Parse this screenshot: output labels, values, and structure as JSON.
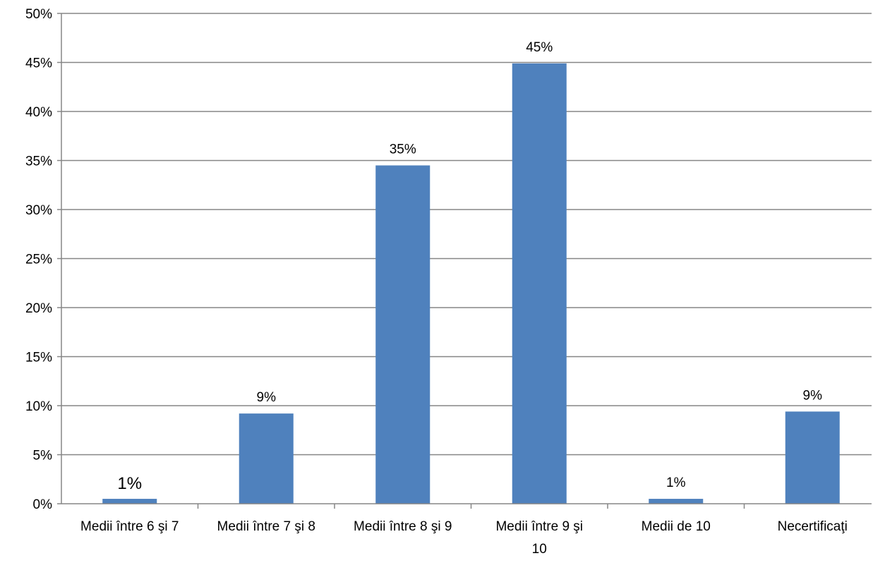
{
  "chart_data": {
    "type": "bar",
    "categories": [
      [
        "Medii între 6 şi 7"
      ],
      [
        "Medii între 7 şi 8"
      ],
      [
        "Medii între 8 şi 9"
      ],
      [
        "Medii între 9 şi",
        "10"
      ],
      [
        "Medii de 10"
      ],
      [
        "Necertificaţi"
      ]
    ],
    "values": [
      0.5,
      9.2,
      34.5,
      44.9,
      0.5,
      9.4
    ],
    "data_labels": [
      "1%",
      "9%",
      "35%",
      "45%",
      "1%",
      "9%"
    ],
    "yticks": [
      "0%",
      "5%",
      "10%",
      "15%",
      "20%",
      "25%",
      "30%",
      "35%",
      "40%",
      "45%",
      "50%"
    ],
    "ylim": [
      0,
      50
    ],
    "title": "",
    "xlabel": "",
    "ylabel": "",
    "grid": true,
    "legend": "none",
    "colors": {
      "bar": "#4F81BD",
      "grid": "#868686",
      "axis": "#868686"
    }
  }
}
